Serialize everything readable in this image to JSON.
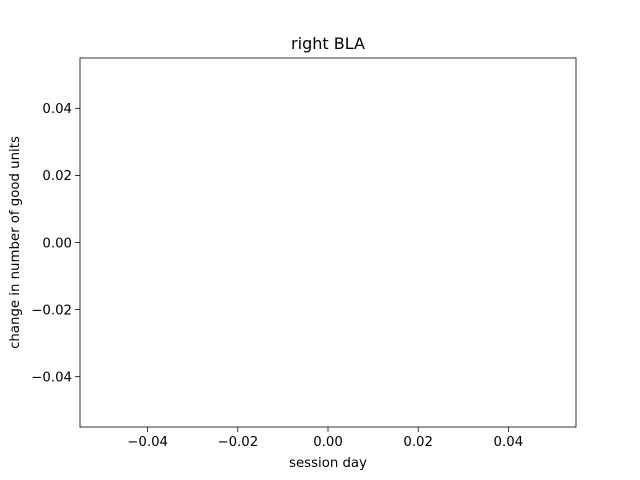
{
  "chart_data": {
    "type": "line",
    "title": "right BLA",
    "xlabel": "session day",
    "ylabel": "change in number of good units",
    "xlim": [
      -0.055,
      0.055
    ],
    "ylim": [
      -0.055,
      0.055
    ],
    "xticks": [
      -0.04,
      -0.02,
      0.0,
      0.02,
      0.04
    ],
    "xtick_labels": [
      "−0.04",
      "−0.02",
      "0.00",
      "0.02",
      "0.04"
    ],
    "yticks": [
      -0.04,
      -0.02,
      0.0,
      0.02,
      0.04
    ],
    "ytick_labels": [
      "−0.04",
      "−0.02",
      "0.00",
      "0.02",
      "0.04"
    ],
    "grid": false,
    "series": []
  }
}
